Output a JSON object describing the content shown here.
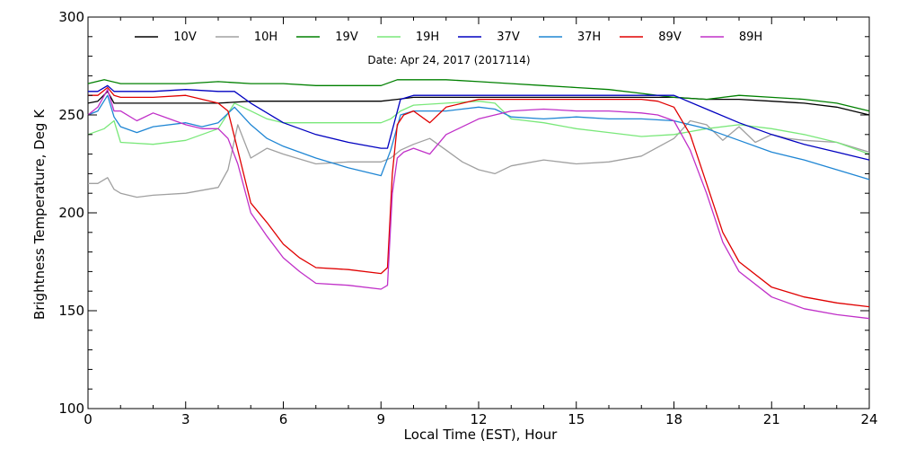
{
  "chart_data": {
    "type": "line",
    "title": "",
    "annotation": "Date: Apr 24, 2017 (2017114)",
    "xlabel": "Local Time (EST), Hour",
    "ylabel": "Brightness Temperature, Deg K",
    "xlim": [
      0,
      24
    ],
    "ylim": [
      100,
      300
    ],
    "xticks": [
      0,
      3,
      6,
      9,
      12,
      15,
      18,
      21,
      24
    ],
    "yticks": [
      100,
      150,
      200,
      250,
      300
    ],
    "grid": false,
    "legend_placement": "top",
    "series": [
      {
        "name": "10V",
        "color": "#000000",
        "x": [
          0,
          0.3,
          0.6,
          0.8,
          1,
          2,
          3,
          4,
          5,
          6,
          7,
          8,
          9,
          9.5,
          10,
          11,
          12,
          13,
          14,
          15,
          16,
          17,
          18,
          19,
          20,
          21,
          22,
          23,
          24
        ],
        "y": [
          256,
          257,
          262,
          256,
          256,
          256,
          256,
          256,
          257,
          257,
          257,
          257,
          257,
          258,
          259,
          259,
          259,
          259,
          259,
          259,
          259,
          259,
          259,
          258,
          258,
          257,
          256,
          254,
          250
        ]
      },
      {
        "name": "10H",
        "color": "#a0a0a0",
        "x": [
          0,
          0.3,
          0.6,
          0.8,
          1,
          1.5,
          2,
          3,
          4,
          4.3,
          4.6,
          5,
          5.5,
          6,
          7,
          8,
          9,
          9.3,
          9.6,
          10,
          10.5,
          11,
          11.5,
          12,
          12.5,
          13,
          14,
          15,
          16,
          17,
          18,
          18.5,
          19,
          19.5,
          20,
          20.5,
          21,
          21.5,
          22,
          23,
          24
        ],
        "y": [
          215,
          215,
          218,
          212,
          210,
          208,
          209,
          210,
          213,
          222,
          245,
          228,
          233,
          230,
          225,
          226,
          226,
          228,
          232,
          235,
          238,
          232,
          226,
          222,
          220,
          224,
          227,
          225,
          226,
          229,
          238,
          247,
          245,
          237,
          244,
          236,
          240,
          238,
          237,
          236,
          231
        ]
      },
      {
        "name": "19V",
        "color": "#008000",
        "x": [
          0,
          0.5,
          1,
          2,
          3,
          4,
          5,
          6,
          7,
          8,
          9,
          9.5,
          10,
          11,
          12,
          13,
          14,
          15,
          16,
          17,
          18,
          19,
          20,
          21,
          22,
          23,
          24
        ],
        "y": [
          266,
          268,
          266,
          266,
          266,
          267,
          266,
          266,
          265,
          265,
          265,
          268,
          268,
          268,
          267,
          266,
          265,
          264,
          263,
          261,
          259,
          258,
          260,
          259,
          258,
          256,
          252
        ]
      },
      {
        "name": "19H",
        "color": "#7ae87a",
        "x": [
          0,
          0.5,
          0.8,
          1,
          2,
          3,
          4,
          4.5,
          5,
          5.5,
          6,
          7,
          8,
          9,
          9.3,
          9.6,
          10,
          11,
          12,
          12.5,
          13,
          14,
          15,
          16,
          17,
          18,
          19,
          20,
          21,
          22,
          23,
          24
        ],
        "y": [
          240,
          243,
          247,
          236,
          235,
          237,
          243,
          256,
          252,
          248,
          246,
          246,
          246,
          246,
          248,
          252,
          255,
          256,
          257,
          256,
          248,
          246,
          243,
          241,
          239,
          240,
          243,
          245,
          243,
          240,
          236,
          230
        ]
      },
      {
        "name": "37V",
        "color": "#0000c0",
        "x": [
          0,
          0.3,
          0.6,
          0.8,
          1,
          2,
          3,
          4,
          4.5,
          5,
          6,
          7,
          8,
          9,
          9.2,
          9.6,
          10,
          11,
          12,
          13,
          14,
          15,
          16,
          17,
          18,
          19,
          20,
          21,
          22,
          23,
          24
        ],
        "y": [
          262,
          262,
          265,
          262,
          262,
          262,
          263,
          262,
          262,
          256,
          246,
          240,
          236,
          233,
          233,
          258,
          260,
          260,
          260,
          260,
          260,
          260,
          260,
          260,
          260,
          253,
          246,
          240,
          235,
          231,
          227
        ]
      },
      {
        "name": "37H",
        "color": "#1f86d4",
        "x": [
          0,
          0.3,
          0.6,
          0.8,
          1,
          1.5,
          2,
          3,
          3.5,
          4,
          4.5,
          5,
          5.5,
          6,
          7,
          8,
          9,
          9.3,
          9.6,
          10,
          11,
          12,
          12.5,
          13,
          14,
          15,
          16,
          17,
          18,
          19,
          20,
          21,
          22,
          23,
          24
        ],
        "y": [
          250,
          252,
          260,
          249,
          244,
          241,
          244,
          246,
          244,
          246,
          254,
          245,
          238,
          234,
          228,
          223,
          219,
          232,
          250,
          252,
          252,
          254,
          253,
          249,
          248,
          249,
          248,
          248,
          247,
          243,
          237,
          231,
          227,
          222,
          217
        ]
      },
      {
        "name": "89V",
        "color": "#e00000",
        "x": [
          0,
          0.3,
          0.6,
          0.8,
          1,
          2,
          3,
          4,
          4.3,
          4.6,
          5,
          5.5,
          6,
          6.5,
          7,
          8,
          9,
          9.2,
          9.35,
          9.5,
          9.7,
          10,
          10.5,
          11,
          12,
          13,
          14,
          15,
          16,
          17,
          17.5,
          18,
          18.5,
          19,
          19.5,
          20,
          21,
          22,
          23,
          24
        ],
        "y": [
          260,
          260,
          264,
          260,
          259,
          259,
          260,
          256,
          252,
          232,
          205,
          195,
          184,
          177,
          172,
          171,
          169,
          172,
          220,
          245,
          250,
          252,
          246,
          254,
          258,
          258,
          258,
          258,
          258,
          258,
          257,
          254,
          240,
          215,
          190,
          175,
          162,
          157,
          154,
          152
        ]
      },
      {
        "name": "89H",
        "color": "#c030c8",
        "x": [
          0,
          0.3,
          0.6,
          0.8,
          1,
          1.5,
          2,
          3,
          3.5,
          4,
          4.3,
          4.6,
          5,
          5.5,
          6,
          6.5,
          7,
          8,
          9,
          9.2,
          9.35,
          9.5,
          9.7,
          10,
          10.5,
          11,
          12,
          13,
          14,
          15,
          16,
          17,
          17.5,
          18,
          18.5,
          19,
          19.5,
          20,
          21,
          22,
          23,
          24
        ],
        "y": [
          250,
          254,
          263,
          252,
          252,
          247,
          251,
          245,
          243,
          243,
          238,
          225,
          200,
          188,
          177,
          170,
          164,
          163,
          161,
          163,
          210,
          228,
          231,
          233,
          230,
          240,
          248,
          252,
          253,
          252,
          252,
          251,
          250,
          247,
          232,
          210,
          185,
          170,
          157,
          151,
          148,
          146
        ]
      }
    ]
  }
}
